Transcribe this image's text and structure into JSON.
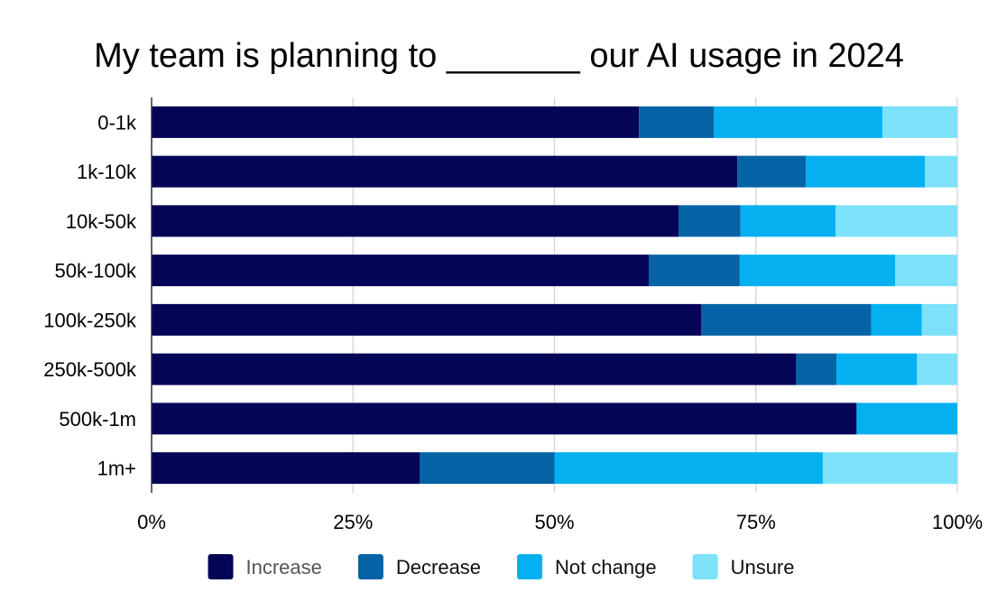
{
  "chart_data": {
    "type": "bar",
    "orientation": "horizontal",
    "stacked": true,
    "title": "My team is planning to _______ our AI usage in 2024",
    "xlabel": "",
    "ylabel": "",
    "xlim": [
      0,
      100
    ],
    "x_ticks": [
      0,
      25,
      50,
      75,
      100
    ],
    "x_tick_labels": [
      "0%",
      "25%",
      "50%",
      "75%",
      "100%"
    ],
    "grid": "vertical",
    "legend_position": "bottom",
    "categories": [
      "0-1k",
      "1k-10k",
      "10k-50k",
      "50k-100k",
      "100k-250k",
      "250k-500k",
      "500k-1m",
      "1m+"
    ],
    "series": [
      {
        "name": "Increase",
        "color": "#050557",
        "values": [
          60.5,
          72.7,
          65.4,
          61.7,
          68.2,
          80.0,
          87.5,
          33.3
        ]
      },
      {
        "name": "Decrease",
        "color": "#0663A6",
        "values": [
          9.3,
          8.5,
          7.7,
          11.3,
          21.1,
          5.0,
          0,
          16.7
        ]
      },
      {
        "name": "Not change",
        "color": "#05B0F0",
        "values": [
          20.9,
          14.8,
          11.8,
          19.3,
          6.3,
          10.0,
          12.5,
          33.3
        ]
      },
      {
        "name": "Unsure",
        "color": "#7DE1FA",
        "values": [
          9.3,
          4.0,
          15.1,
          7.7,
          4.4,
          5.0,
          0,
          16.7
        ]
      }
    ]
  }
}
